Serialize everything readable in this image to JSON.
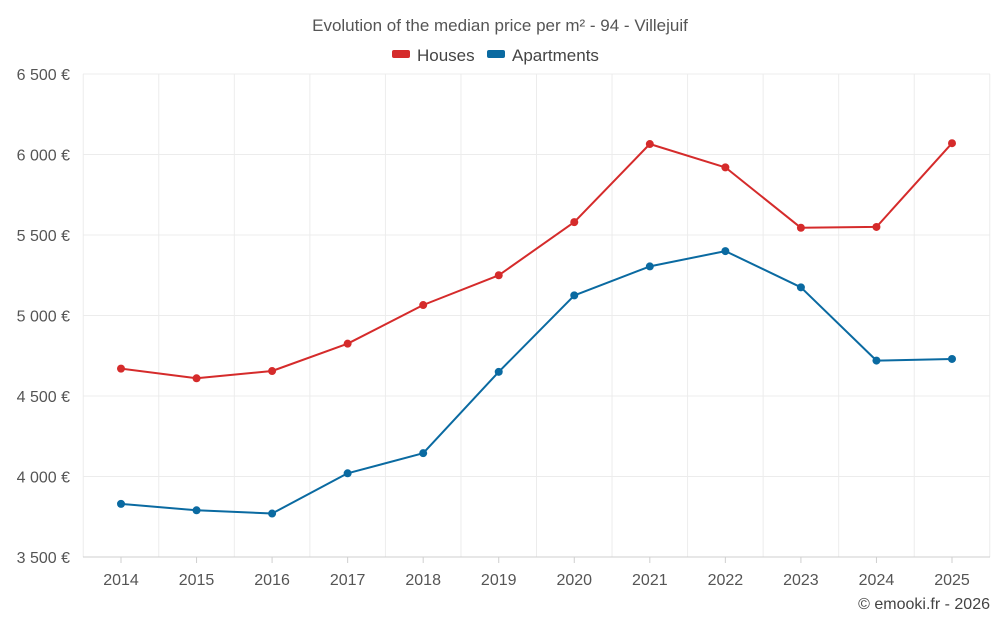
{
  "chart_data": {
    "type": "line",
    "title": "Evolution of the median price per m² - 94 - Villejuif",
    "categories": [
      "2014",
      "2015",
      "2016",
      "2017",
      "2018",
      "2019",
      "2020",
      "2021",
      "2022",
      "2023",
      "2024",
      "2025"
    ],
    "series": [
      {
        "name": "Houses",
        "color": "#d52b2b",
        "values": [
          4670,
          4610,
          4655,
          4825,
          5065,
          5250,
          5580,
          6065,
          5920,
          5545,
          5550,
          6070
        ]
      },
      {
        "name": "Apartments",
        "color": "#0a6aa1",
        "values": [
          3830,
          3790,
          3770,
          4020,
          4145,
          4650,
          5125,
          5305,
          5400,
          5175,
          4720,
          4730
        ]
      }
    ],
    "ylim": [
      3500,
      6500
    ],
    "yticks": [
      3500,
      4000,
      4500,
      5000,
      5500,
      6000,
      6500
    ],
    "ytick_labels": [
      "3 500 €",
      "4 000 €",
      "4 500 €",
      "5 000 €",
      "5 500 €",
      "6 000 €",
      "6 500 €"
    ],
    "xlabel": "",
    "ylabel": "",
    "grid": true,
    "legend_position": "top-center"
  },
  "footer": {
    "copyright": "© emooki.fr - 2026"
  }
}
